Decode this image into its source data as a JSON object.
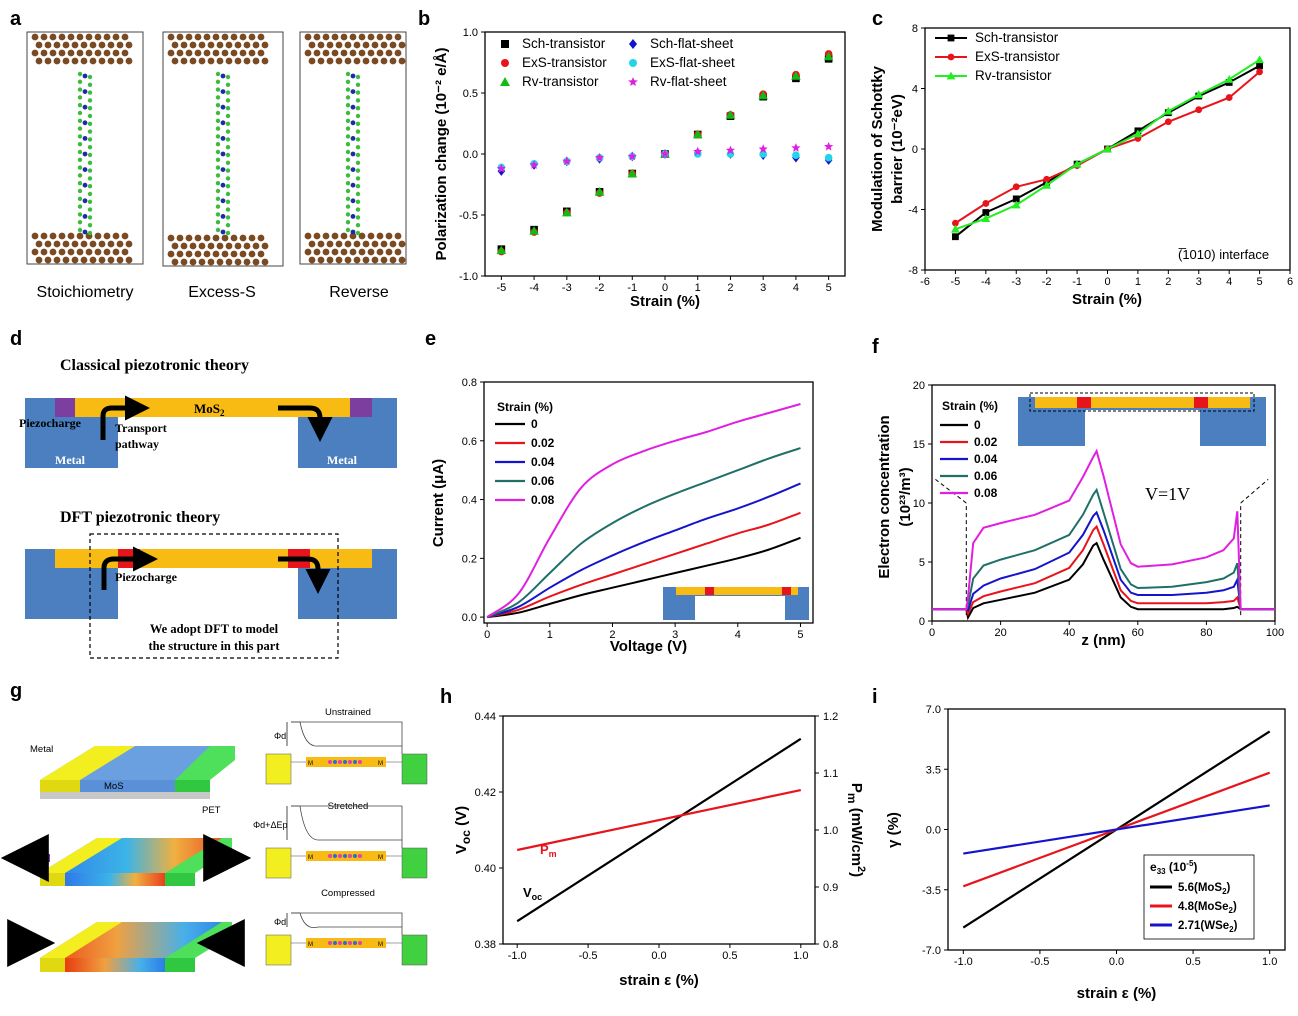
{
  "figure": {
    "panel_letters": [
      "a",
      "b",
      "c",
      "d",
      "e",
      "f",
      "g",
      "h",
      "i"
    ],
    "a": {
      "labels": [
        "Stoichiometry",
        "Excess-S",
        "Reverse"
      ]
    },
    "d": {
      "classical_title": "Classical piezotronic theory",
      "dft_title": "DFT piezotronic theory",
      "mos2": "MoS",
      "mos2_sub": "2",
      "piezocharge": "Piezocharge",
      "transport_line1": "Transport",
      "transport_line2": "pathway",
      "metal": "Metal",
      "dft_note_line1": "We adopt DFT to model",
      "dft_note_line2": "the structure in this part"
    },
    "g": {
      "metal": "Metal",
      "mos2": "MoS",
      "pet": "PET",
      "unstrained": "Unstrained",
      "stretched": "Stretched",
      "compressed": "Compressed",
      "phi_d": "Φd",
      "phi_d_plus": "Φd+ΔEp",
      "m": "M"
    }
  },
  "chart_data": [
    {
      "id": "b",
      "type": "scatter",
      "xlabel": "Strain (%)",
      "ylabel": "Polarization change (10⁻² e/Å)",
      "xlim": [
        -5.5,
        5.5
      ],
      "ylim": [
        -1.0,
        1.0
      ],
      "xticks": [
        -5,
        -4,
        -3,
        -2,
        -1,
        0,
        1,
        2,
        3,
        4,
        5
      ],
      "yticks": [
        -1.0,
        -0.5,
        0.0,
        0.5,
        1.0
      ],
      "ytick_labels": [
        "-1.0",
        "-0.5",
        "0.0",
        "0.5",
        "1.0"
      ],
      "x": [
        -5,
        -4,
        -3,
        -2,
        -1,
        0,
        1,
        2,
        3,
        4,
        5
      ],
      "series": [
        {
          "name": "Sch-transistor",
          "color": "#000000",
          "marker": "square",
          "values": [
            -0.78,
            -0.62,
            -0.47,
            -0.31,
            -0.16,
            0.0,
            0.16,
            0.31,
            0.47,
            0.62,
            0.78
          ]
        },
        {
          "name": "ExS-transistor",
          "color": "#e8141b",
          "marker": "circle",
          "values": [
            -0.8,
            -0.64,
            -0.48,
            -0.32,
            -0.16,
            0.0,
            0.16,
            0.32,
            0.49,
            0.65,
            0.82
          ]
        },
        {
          "name": "Rv-transistor",
          "color": "#11bb11",
          "marker": "triangle",
          "values": [
            -0.79,
            -0.63,
            -0.48,
            -0.31,
            -0.16,
            0.0,
            0.16,
            0.32,
            0.48,
            0.64,
            0.8
          ]
        },
        {
          "name": "Sch-flat-sheet",
          "color": "#1414cc",
          "marker": "diamond",
          "values": [
            -0.14,
            -0.09,
            -0.06,
            -0.04,
            -0.02,
            0.0,
            0.01,
            0.0,
            -0.01,
            -0.03,
            -0.05
          ]
        },
        {
          "name": "ExS-flat-sheet",
          "color": "#22d4e8",
          "marker": "circle",
          "values": [
            -0.11,
            -0.08,
            -0.06,
            -0.03,
            -0.02,
            0.0,
            0.0,
            0.0,
            0.0,
            -0.01,
            -0.03
          ]
        },
        {
          "name": "Rv-flat-sheet",
          "color": "#e020e0",
          "marker": "star",
          "values": [
            -0.12,
            -0.09,
            -0.06,
            -0.03,
            -0.02,
            0.0,
            0.02,
            0.03,
            0.04,
            0.05,
            0.06
          ]
        }
      ]
    },
    {
      "id": "c",
      "type": "line",
      "xlabel": "Strain (%)",
      "ylabel_line1": "Modulation of Schottky",
      "ylabel_line2": "barrier (10⁻²eV)",
      "annotation": "(̅1010) interface",
      "xlim": [
        -6,
        6
      ],
      "ylim": [
        -8,
        8
      ],
      "xticks": [
        -6,
        -5,
        -4,
        -3,
        -2,
        -1,
        0,
        1,
        2,
        3,
        4,
        5,
        6
      ],
      "yticks": [
        -8,
        -4,
        0,
        4,
        8
      ],
      "x": [
        -5,
        -4,
        -3,
        -2,
        -1,
        0,
        1,
        2,
        3,
        4,
        5
      ],
      "series": [
        {
          "name": "Sch-transistor",
          "color": "#000000",
          "marker": "square",
          "values": [
            -5.8,
            -4.2,
            -3.3,
            -2.2,
            -1.0,
            0.0,
            1.2,
            2.4,
            3.5,
            4.4,
            5.5
          ]
        },
        {
          "name": "ExS-transistor",
          "color": "#e8141b",
          "marker": "circle",
          "values": [
            -4.9,
            -3.6,
            -2.5,
            -2.0,
            -1.1,
            0.0,
            0.7,
            1.8,
            2.6,
            3.4,
            5.1
          ]
        },
        {
          "name": "Rv-transistor",
          "color": "#22ee22",
          "marker": "triangle",
          "values": [
            -5.3,
            -4.6,
            -3.7,
            -2.4,
            -1.0,
            0.0,
            1.0,
            2.5,
            3.6,
            4.6,
            5.9
          ]
        }
      ]
    },
    {
      "id": "e",
      "type": "line",
      "xlabel": "Voltage (V)",
      "ylabel": "Current (μA)",
      "legend_title": "Strain (%)",
      "xlim": [
        -0.05,
        5.2
      ],
      "ylim": [
        -0.02,
        0.8
      ],
      "xticks": [
        0,
        1,
        2,
        3,
        4,
        5
      ],
      "yticks": [
        0.0,
        0.2,
        0.4,
        0.6,
        0.8
      ],
      "ytick_labels": [
        "0.0",
        "0.2",
        "0.4",
        "0.6",
        "0.8"
      ],
      "x": [
        0,
        0.5,
        1,
        1.5,
        2,
        2.5,
        3,
        3.5,
        4,
        4.5,
        5
      ],
      "series": [
        {
          "name": "0",
          "color": "#000000",
          "values": [
            0,
            0.015,
            0.045,
            0.075,
            0.1,
            0.125,
            0.15,
            0.175,
            0.2,
            0.23,
            0.27
          ]
        },
        {
          "name": "0.02",
          "color": "#e8141b",
          "values": [
            0,
            0.025,
            0.07,
            0.11,
            0.145,
            0.18,
            0.215,
            0.25,
            0.285,
            0.315,
            0.355
          ]
        },
        {
          "name": "0.04",
          "color": "#1414cc",
          "values": [
            0,
            0.035,
            0.1,
            0.16,
            0.21,
            0.255,
            0.295,
            0.335,
            0.37,
            0.41,
            0.455
          ]
        },
        {
          "name": "0.06",
          "color": "#1f7068",
          "values": [
            0,
            0.05,
            0.15,
            0.25,
            0.32,
            0.375,
            0.42,
            0.46,
            0.5,
            0.54,
            0.575
          ]
        },
        {
          "name": "0.08",
          "color": "#e020e0",
          "values": [
            0,
            0.08,
            0.27,
            0.44,
            0.52,
            0.565,
            0.6,
            0.63,
            0.665,
            0.695,
            0.725
          ]
        }
      ]
    },
    {
      "id": "f",
      "type": "line",
      "xlabel": "z (nm)",
      "ylabel_line1": "Electron concentration",
      "ylabel_line2": "(10²³/m³)",
      "legend_title": "Strain (%)",
      "annotation": "V=1V",
      "xlim": [
        0,
        100
      ],
      "ylim": [
        0,
        20
      ],
      "xticks": [
        0,
        20,
        40,
        60,
        80,
        100
      ],
      "yticks": [
        0,
        5,
        10,
        15,
        20
      ],
      "x": [
        0,
        10,
        10.5,
        12,
        15,
        20,
        30,
        40,
        44,
        47,
        48,
        50,
        55,
        58,
        60,
        70,
        80,
        85,
        88,
        89,
        90,
        90.5,
        100
      ],
      "series": [
        {
          "name": "0",
          "color": "#000000",
          "values": [
            1,
            1,
            0.3,
            1.1,
            1.5,
            1.8,
            2.4,
            3.5,
            4.8,
            6.4,
            6.6,
            5.2,
            2.0,
            1.2,
            1.0,
            1.0,
            1.0,
            1.0,
            1.1,
            1.2,
            1,
            1,
            1
          ]
        },
        {
          "name": "0.02",
          "color": "#e8141b",
          "values": [
            1,
            1,
            0.6,
            1.6,
            2.1,
            2.5,
            3.2,
            4.5,
            6.0,
            7.7,
            8.0,
            6.5,
            2.6,
            1.7,
            1.5,
            1.5,
            1.5,
            1.6,
            1.7,
            2.0,
            1,
            1,
            1
          ]
        },
        {
          "name": "0.04",
          "color": "#1414cc",
          "values": [
            1,
            1,
            0.9,
            2.3,
            3.0,
            3.6,
            4.4,
            5.8,
            7.3,
            8.9,
            9.2,
            7.7,
            3.5,
            2.4,
            2.2,
            2.2,
            2.4,
            2.6,
            2.9,
            3.5,
            1,
            1,
            1
          ]
        },
        {
          "name": "0.06",
          "color": "#1f7068",
          "values": [
            1,
            1,
            1.3,
            3.6,
            4.7,
            5.2,
            6.0,
            7.3,
            9.0,
            10.7,
            11.1,
            9.2,
            4.4,
            3.1,
            2.8,
            2.9,
            3.3,
            3.6,
            4.1,
            4.9,
            1,
            1,
            1
          ]
        },
        {
          "name": "0.08",
          "color": "#e020e0",
          "values": [
            1,
            1,
            2.0,
            6.6,
            7.9,
            8.3,
            9.0,
            10.2,
            12.2,
            13.9,
            14.4,
            12.3,
            6.5,
            4.9,
            4.6,
            4.8,
            5.4,
            6.0,
            7.0,
            9.3,
            1,
            1,
            1
          ]
        }
      ]
    },
    {
      "id": "h",
      "type": "line",
      "xlabel": "strain ε (%)",
      "ylabel_left": "Vₒᶜ (V)",
      "ylabel_left_main": "V",
      "ylabel_left_sub": "oc",
      "ylabel_left_unit": " (V)",
      "ylabel_right_main": "P",
      "ylabel_right_sub": "m",
      "ylabel_right_unit": " (mW/cm",
      "ylabel_right_sup": "2",
      "ylabel_right_close": ")",
      "xlim": [
        -1.1,
        1.1
      ],
      "ylim_left": [
        0.38,
        0.44
      ],
      "ylim_right": [
        0.8,
        1.2
      ],
      "xticks": [
        -1.0,
        -0.5,
        0.0,
        0.5,
        1.0
      ],
      "xtick_labels": [
        "-1.0",
        "-0.5",
        "0.0",
        "0.5",
        "1.0"
      ],
      "yticks_left": [
        0.38,
        0.4,
        0.42,
        0.44
      ],
      "yticks_left_labels": [
        "0.38",
        "0.40",
        "0.42",
        "0.44"
      ],
      "yticks_right": [
        0.8,
        0.9,
        1.0,
        1.1,
        1.2
      ],
      "yticks_right_labels": [
        "0.8",
        "0.9",
        "1.0",
        "1.1",
        "1.2"
      ],
      "series": [
        {
          "name": "V",
          "sub": "oc",
          "color": "#000000",
          "axis": "left",
          "x": [
            -1.0,
            1.0
          ],
          "values": [
            0.386,
            0.434
          ]
        },
        {
          "name": "P",
          "sub": "m",
          "color": "#e8141b",
          "axis": "right",
          "x": [
            -1.0,
            1.0
          ],
          "values": [
            0.965,
            1.07
          ]
        }
      ]
    },
    {
      "id": "i",
      "type": "line",
      "xlabel": "strain ε  (%)",
      "ylabel": "γ (%)",
      "legend_title_main": "e",
      "legend_title_sub": "33",
      "legend_title_rest": " (10",
      "legend_title_sup": "-5",
      "legend_title_close": ")",
      "xlim": [
        -1.1,
        1.1
      ],
      "ylim": [
        -7.0,
        7.0
      ],
      "xticks": [
        -1.0,
        -0.5,
        0.0,
        0.5,
        1.0
      ],
      "xtick_labels": [
        "-1.0",
        "-0.5",
        "0.0",
        "0.5",
        "1.0"
      ],
      "yticks": [
        -7.0,
        -3.5,
        0.0,
        3.5,
        7.0
      ],
      "ytick_labels": [
        "-7.0",
        "-3.5",
        "0.0",
        "3.5",
        "7.0"
      ],
      "series": [
        {
          "name": "5.6(MoS",
          "sub": "2",
          "close": ")",
          "color": "#000000",
          "x": [
            -1.0,
            1.0
          ],
          "values": [
            -5.7,
            5.7
          ]
        },
        {
          "name": "4.8(MoSe",
          "sub": "2",
          "close": ")",
          "color": "#e8141b",
          "x": [
            -1.0,
            1.0
          ],
          "values": [
            -3.3,
            3.3
          ]
        },
        {
          "name": "2.71(WSe",
          "sub": "2",
          "close": ")",
          "color": "#1414cc",
          "x": [
            -1.0,
            1.0
          ],
          "values": [
            -1.4,
            1.4
          ]
        }
      ]
    }
  ]
}
